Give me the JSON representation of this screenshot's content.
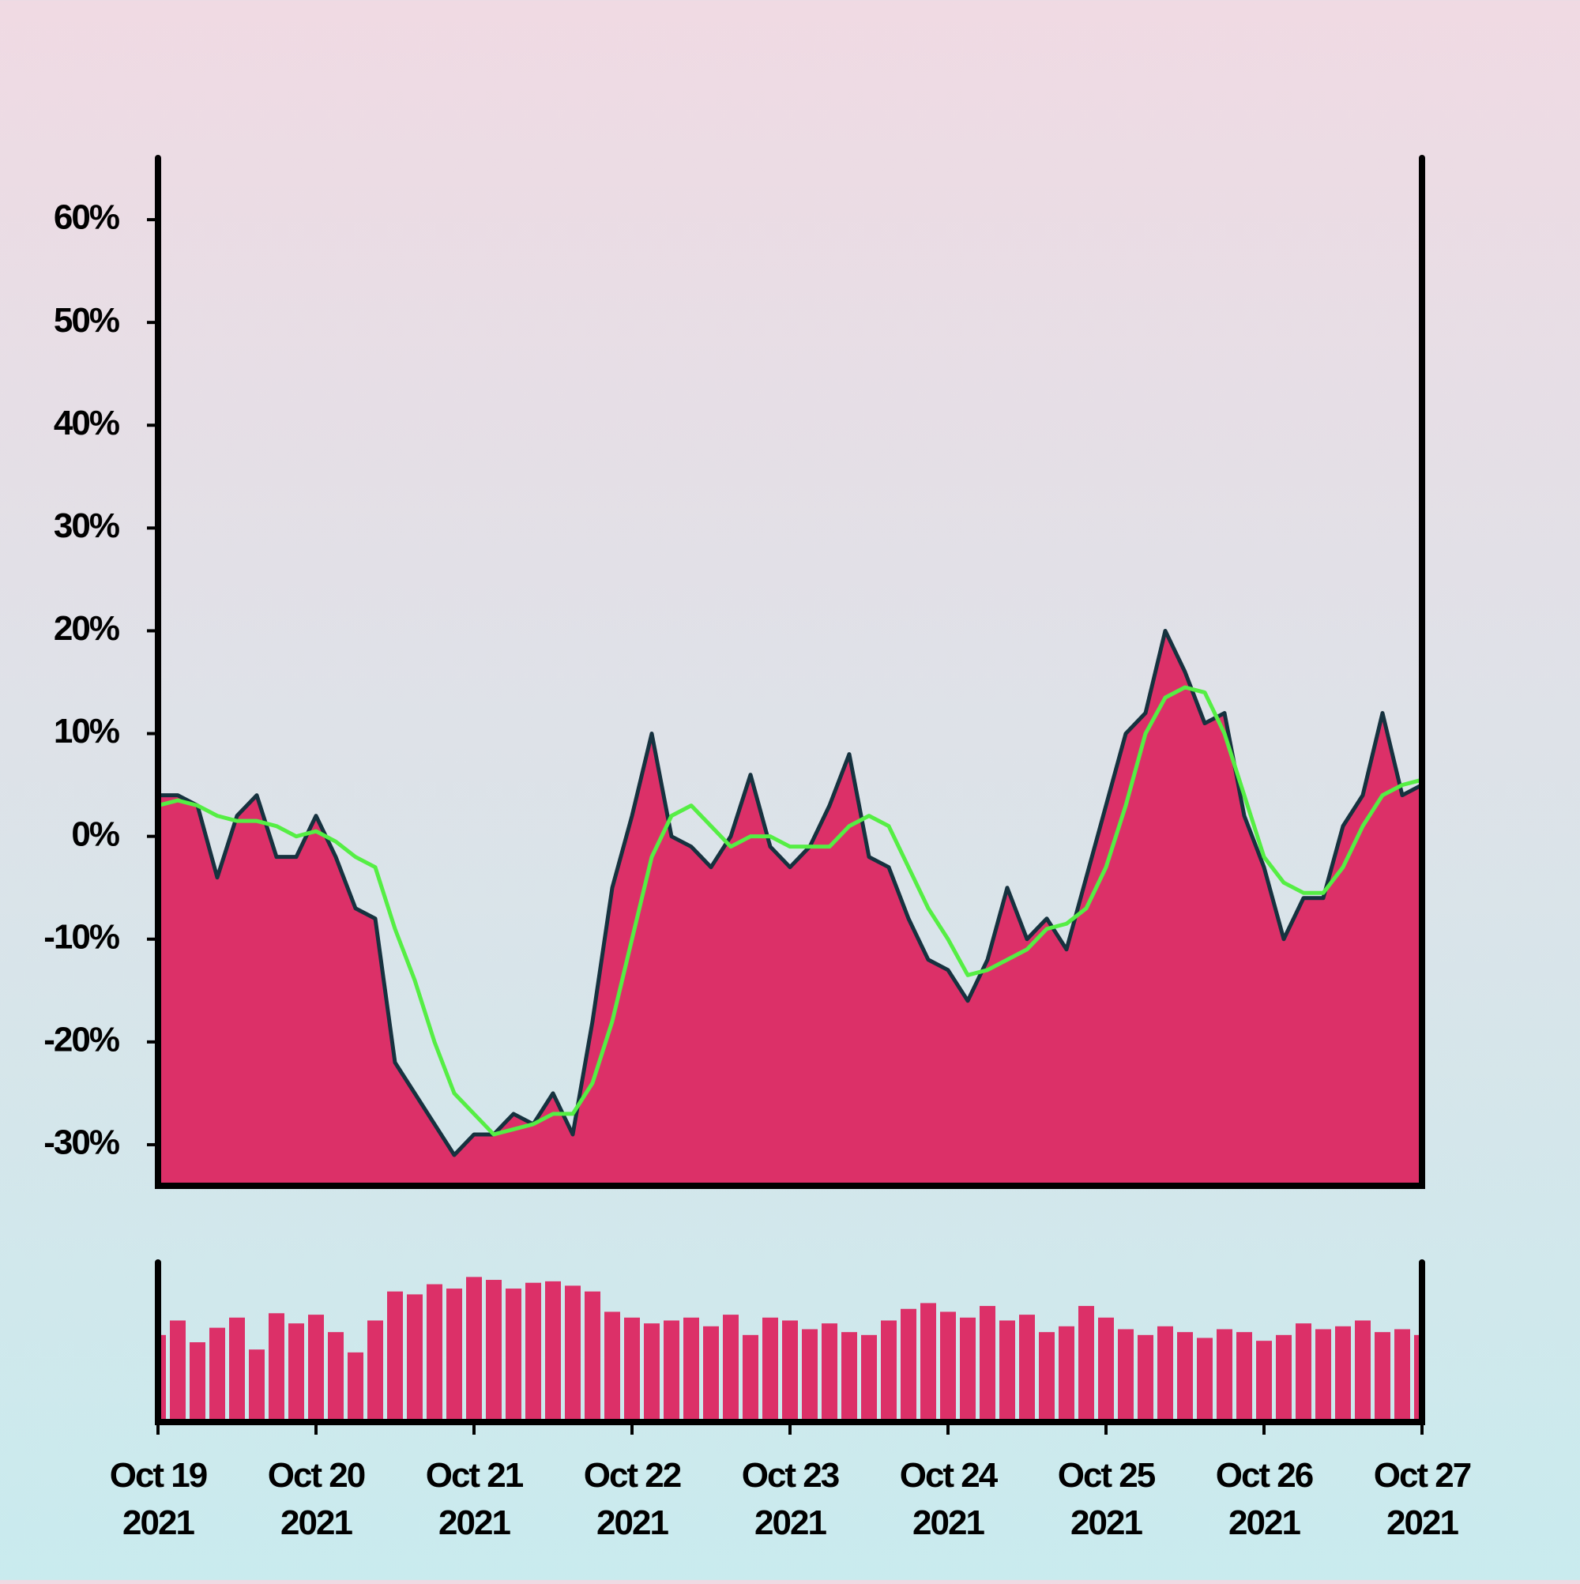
{
  "chart_data": [
    {
      "type": "area",
      "x": [
        0,
        0.125,
        0.25,
        0.375,
        0.5,
        0.625,
        0.75,
        0.875,
        1,
        1.125,
        1.25,
        1.375,
        1.5,
        1.625,
        1.75,
        1.875,
        2,
        2.125,
        2.25,
        2.375,
        2.5,
        2.625,
        2.75,
        2.875,
        3,
        3.125,
        3.25,
        3.375,
        3.5,
        3.625,
        3.75,
        3.875,
        4,
        4.125,
        4.25,
        4.375,
        4.5,
        4.625,
        4.75,
        4.875,
        5,
        5.125,
        5.25,
        5.375,
        5.5,
        5.625,
        5.75,
        5.875,
        6,
        6.125,
        6.25,
        6.375,
        6.5,
        6.625,
        6.75,
        6.875,
        7,
        7.125,
        7.25,
        7.375,
        7.5,
        7.625,
        7.75,
        7.875,
        8
      ],
      "series": [
        {
          "color": "#dc3068",
          "line_color": "#16323f",
          "values": [
            4,
            4,
            3,
            -4,
            2,
            4,
            -2,
            -2,
            2,
            -2,
            -7,
            -8,
            -22,
            -25,
            -28,
            -31,
            -29,
            -29,
            -27,
            -28,
            -25,
            -29,
            -18,
            -5,
            2,
            10,
            0,
            -1,
            -3,
            0,
            6,
            -1,
            -3,
            -1,
            3,
            8,
            -2,
            -3,
            -8,
            -12,
            -13,
            -16,
            -12,
            -5,
            -10,
            -8,
            -11,
            -4,
            3,
            10,
            12,
            20,
            16,
            11,
            12,
            2,
            -3,
            -10,
            -6,
            -6,
            1,
            4,
            12,
            4,
            5
          ]
        },
        {
          "color": "#55ee44",
          "values": [
            3,
            3.5,
            3,
            2,
            1.5,
            1.5,
            1,
            0,
            0.5,
            -0.5,
            -2,
            -3,
            -9,
            -14,
            -20,
            -25,
            -27,
            -29,
            -28.5,
            -28,
            -27,
            -27,
            -24,
            -18,
            -10,
            -2,
            2,
            3,
            1,
            -1,
            0,
            0,
            -1,
            -1,
            -1,
            1,
            2,
            1,
            -3,
            -7,
            -10,
            -13.5,
            -13,
            -12,
            -11,
            -9,
            -8.5,
            -7,
            -3,
            3,
            10,
            13.5,
            14.5,
            14,
            10,
            4,
            -2,
            -4.5,
            -5.5,
            -5.5,
            -3,
            1,
            4,
            5,
            5.5
          ]
        }
      ],
      "xlim": [
        0,
        8
      ],
      "xticks": [
        {
          "value": 0,
          "label": "Oct 19 2021"
        },
        {
          "value": 1,
          "label": "Oct 20 2021"
        },
        {
          "value": 2,
          "label": "Oct 21 2021"
        },
        {
          "value": 3,
          "label": "Oct 22 2021"
        },
        {
          "value": 4,
          "label": "Oct 23 2021"
        },
        {
          "value": 5,
          "label": "Oct 24 2021"
        },
        {
          "value": 6,
          "label": "Oct 25 2021"
        },
        {
          "value": 7,
          "label": "Oct 26 2021"
        },
        {
          "value": 8,
          "label": "Oct 27 2021"
        }
      ],
      "ylim": [
        -34,
        66
      ],
      "yticks": [
        {
          "value": -30,
          "label": "-30%"
        },
        {
          "value": -20,
          "label": "-20%"
        },
        {
          "value": -10,
          "label": "-10%"
        },
        {
          "value": 0,
          "label": "0%"
        },
        {
          "value": 10,
          "label": "10%"
        },
        {
          "value": 20,
          "label": "20%"
        },
        {
          "value": 30,
          "label": "30%"
        },
        {
          "value": 40,
          "label": "40%"
        },
        {
          "value": 50,
          "label": "50%"
        },
        {
          "value": 60,
          "label": "60%"
        }
      ]
    },
    {
      "type": "bar",
      "color": "#dc3068",
      "x": [
        0,
        0.125,
        0.25,
        0.375,
        0.5,
        0.625,
        0.75,
        0.875,
        1,
        1.125,
        1.25,
        1.375,
        1.5,
        1.625,
        1.75,
        1.875,
        2,
        2.125,
        2.25,
        2.375,
        2.5,
        2.625,
        2.75,
        2.875,
        3,
        3.125,
        3.25,
        3.375,
        3.5,
        3.625,
        3.75,
        3.875,
        4,
        4.125,
        4.25,
        4.375,
        4.5,
        4.625,
        4.75,
        4.875,
        5,
        5.125,
        5.25,
        5.375,
        5.5,
        5.625,
        5.75,
        5.875,
        6,
        6.125,
        6.25,
        6.375,
        6.5,
        6.625,
        6.75,
        6.875,
        7,
        7.125,
        7.25,
        7.375,
        7.5,
        7.625,
        7.75,
        7.875,
        8
      ],
      "values": [
        60,
        70,
        55,
        65,
        72,
        50,
        75,
        68,
        74,
        62,
        48,
        70,
        90,
        88,
        95,
        92,
        100,
        98,
        92,
        96,
        97,
        94,
        90,
        76,
        72,
        68,
        70,
        72,
        66,
        74,
        60,
        72,
        70,
        64,
        68,
        62,
        60,
        70,
        78,
        82,
        76,
        72,
        80,
        70,
        74,
        62,
        66,
        80,
        72,
        64,
        60,
        66,
        62,
        58,
        64,
        62,
        56,
        60,
        68,
        64,
        66,
        70,
        62,
        64,
        60
      ],
      "ylim": [
        0,
        110
      ]
    }
  ]
}
